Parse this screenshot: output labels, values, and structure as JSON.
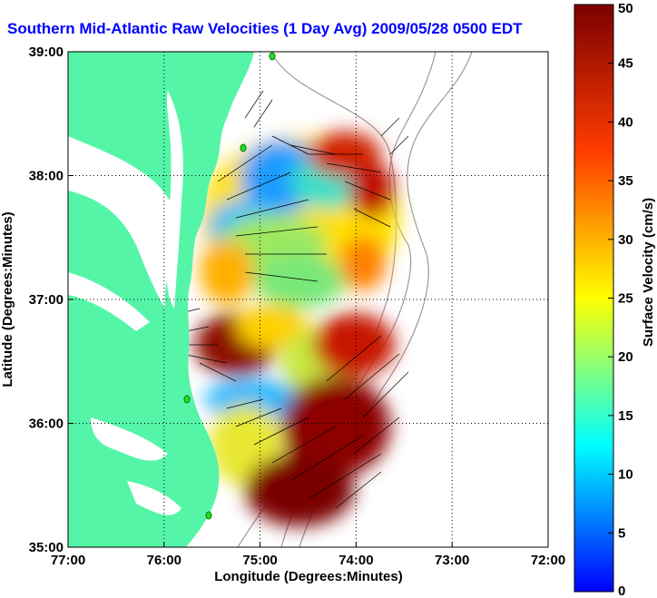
{
  "title": "Southern Mid-Atlantic Raw Velocities (1 Day Avg) 2009/05/28 0500 EDT",
  "map": {
    "xlabel": "Longitude (Degrees:Minutes)",
    "ylabel": "Latitude (Degrees:Minutes)",
    "x_ticks": [
      "77:00",
      "76:00",
      "75:00",
      "74:00",
      "73:00",
      "72:00"
    ],
    "y_ticks": [
      "39:00",
      "38:00",
      "37:00",
      "36:00",
      "35:00"
    ],
    "land_color": "#55f5a8",
    "grid": "dotted"
  },
  "colorbar": {
    "label": "Surface Velocity (cm/s)",
    "ticks": [
      "50",
      "45",
      "40",
      "35",
      "30",
      "25",
      "20",
      "15",
      "10",
      "5",
      "0"
    ],
    "range": [
      0,
      50
    ],
    "colormap": "jet"
  }
}
